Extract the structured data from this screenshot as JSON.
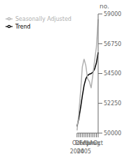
{
  "chart_data": {
    "type": "line",
    "y_label": "no.",
    "categories": [
      "Oct",
      null,
      "Dec",
      null,
      "Feb",
      null,
      "Apr",
      null,
      "Jun",
      null,
      "Aug",
      null,
      "Oct"
    ],
    "annotations": [
      {
        "text": "2004",
        "x": 0
      },
      {
        "text": "2005",
        "x": 4
      }
    ],
    "series": [
      {
        "name": "Trend",
        "color": "#000000",
        "values": [
          50500,
          51100,
          51900,
          52800,
          53600,
          54100,
          54350,
          54450,
          54500,
          54600,
          54850,
          55300,
          56100
        ]
      },
      {
        "name": "Seasonally Adjusted",
        "color": "#b0b0b0",
        "values": [
          50200,
          51500,
          53100,
          55000,
          55600,
          55100,
          54100,
          53900,
          53400,
          54400,
          55500,
          56500,
          58600
        ]
      }
    ],
    "ylim": [
      50000,
      59000
    ],
    "yticks": [
      50000,
      52250,
      54500,
      56750,
      59000
    ],
    "grid": false,
    "legend": "upper left"
  }
}
